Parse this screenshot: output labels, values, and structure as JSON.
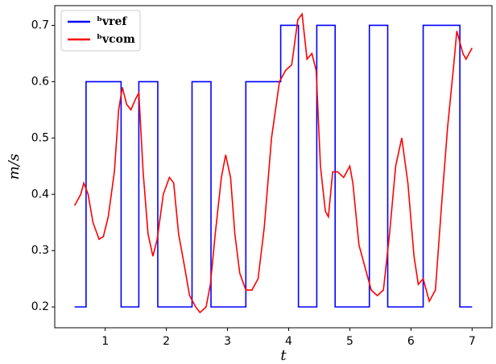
{
  "chart_data": {
    "type": "line",
    "xlabel": "t",
    "ylabel": "m/s",
    "xlim": [
      0.175,
      7.325
    ],
    "ylim": [
      0.163,
      0.735
    ],
    "xticks": [
      1,
      2,
      3,
      4,
      5,
      6,
      7
    ],
    "yticks": [
      0.2,
      0.3,
      0.4,
      0.5,
      0.6,
      0.7
    ],
    "legend": "upper left",
    "series": [
      {
        "name": "ᵇvref",
        "color": "#0000ff",
        "x": [
          0.5,
          0.687,
          0.687,
          1.26,
          1.26,
          1.55,
          1.55,
          1.86,
          1.86,
          2.42,
          2.42,
          2.73,
          2.73,
          3.3,
          3.3,
          3.87,
          3.87,
          4.16,
          4.16,
          4.46,
          4.46,
          4.76,
          4.76,
          5.32,
          5.32,
          5.62,
          5.62,
          6.2,
          6.2,
          6.8,
          6.8,
          7.0
        ],
        "values": [
          0.2,
          0.2,
          0.6,
          0.6,
          0.2,
          0.2,
          0.6,
          0.6,
          0.2,
          0.2,
          0.6,
          0.6,
          0.2,
          0.2,
          0.6,
          0.6,
          0.7,
          0.7,
          0.2,
          0.2,
          0.7,
          0.7,
          0.2,
          0.2,
          0.7,
          0.7,
          0.2,
          0.2,
          0.7,
          0.7,
          0.2,
          0.2
        ]
      },
      {
        "name": "ᵇvcom",
        "color": "#ff0000",
        "x": [
          0.5,
          0.6,
          0.65,
          0.72,
          0.8,
          0.9,
          0.97,
          1.05,
          1.15,
          1.22,
          1.28,
          1.35,
          1.42,
          1.5,
          1.55,
          1.62,
          1.7,
          1.78,
          1.85,
          1.95,
          2.05,
          2.12,
          2.2,
          2.3,
          2.38,
          2.48,
          2.55,
          2.65,
          2.72,
          2.8,
          2.9,
          2.97,
          3.05,
          3.12,
          3.2,
          3.3,
          3.4,
          3.5,
          3.6,
          3.72,
          3.85,
          3.95,
          4.05,
          4.15,
          4.22,
          4.3,
          4.38,
          4.45,
          4.52,
          4.6,
          4.65,
          4.72,
          4.8,
          4.9,
          5.0,
          5.05,
          5.15,
          5.25,
          5.35,
          5.45,
          5.55,
          5.65,
          5.75,
          5.85,
          5.95,
          6.05,
          6.12,
          6.2,
          6.3,
          6.4,
          6.5,
          6.6,
          6.7,
          6.75,
          6.85,
          6.9,
          7.0
        ],
        "values": [
          0.38,
          0.4,
          0.42,
          0.4,
          0.35,
          0.32,
          0.325,
          0.36,
          0.44,
          0.55,
          0.59,
          0.56,
          0.55,
          0.57,
          0.58,
          0.44,
          0.33,
          0.29,
          0.32,
          0.4,
          0.43,
          0.42,
          0.33,
          0.27,
          0.22,
          0.2,
          0.19,
          0.2,
          0.24,
          0.33,
          0.43,
          0.47,
          0.43,
          0.33,
          0.26,
          0.23,
          0.23,
          0.25,
          0.34,
          0.5,
          0.6,
          0.62,
          0.63,
          0.71,
          0.72,
          0.64,
          0.65,
          0.62,
          0.45,
          0.37,
          0.36,
          0.44,
          0.44,
          0.43,
          0.45,
          0.42,
          0.31,
          0.27,
          0.23,
          0.22,
          0.23,
          0.33,
          0.45,
          0.5,
          0.42,
          0.29,
          0.24,
          0.25,
          0.21,
          0.23,
          0.38,
          0.52,
          0.63,
          0.69,
          0.65,
          0.64,
          0.66
        ]
      }
    ]
  }
}
